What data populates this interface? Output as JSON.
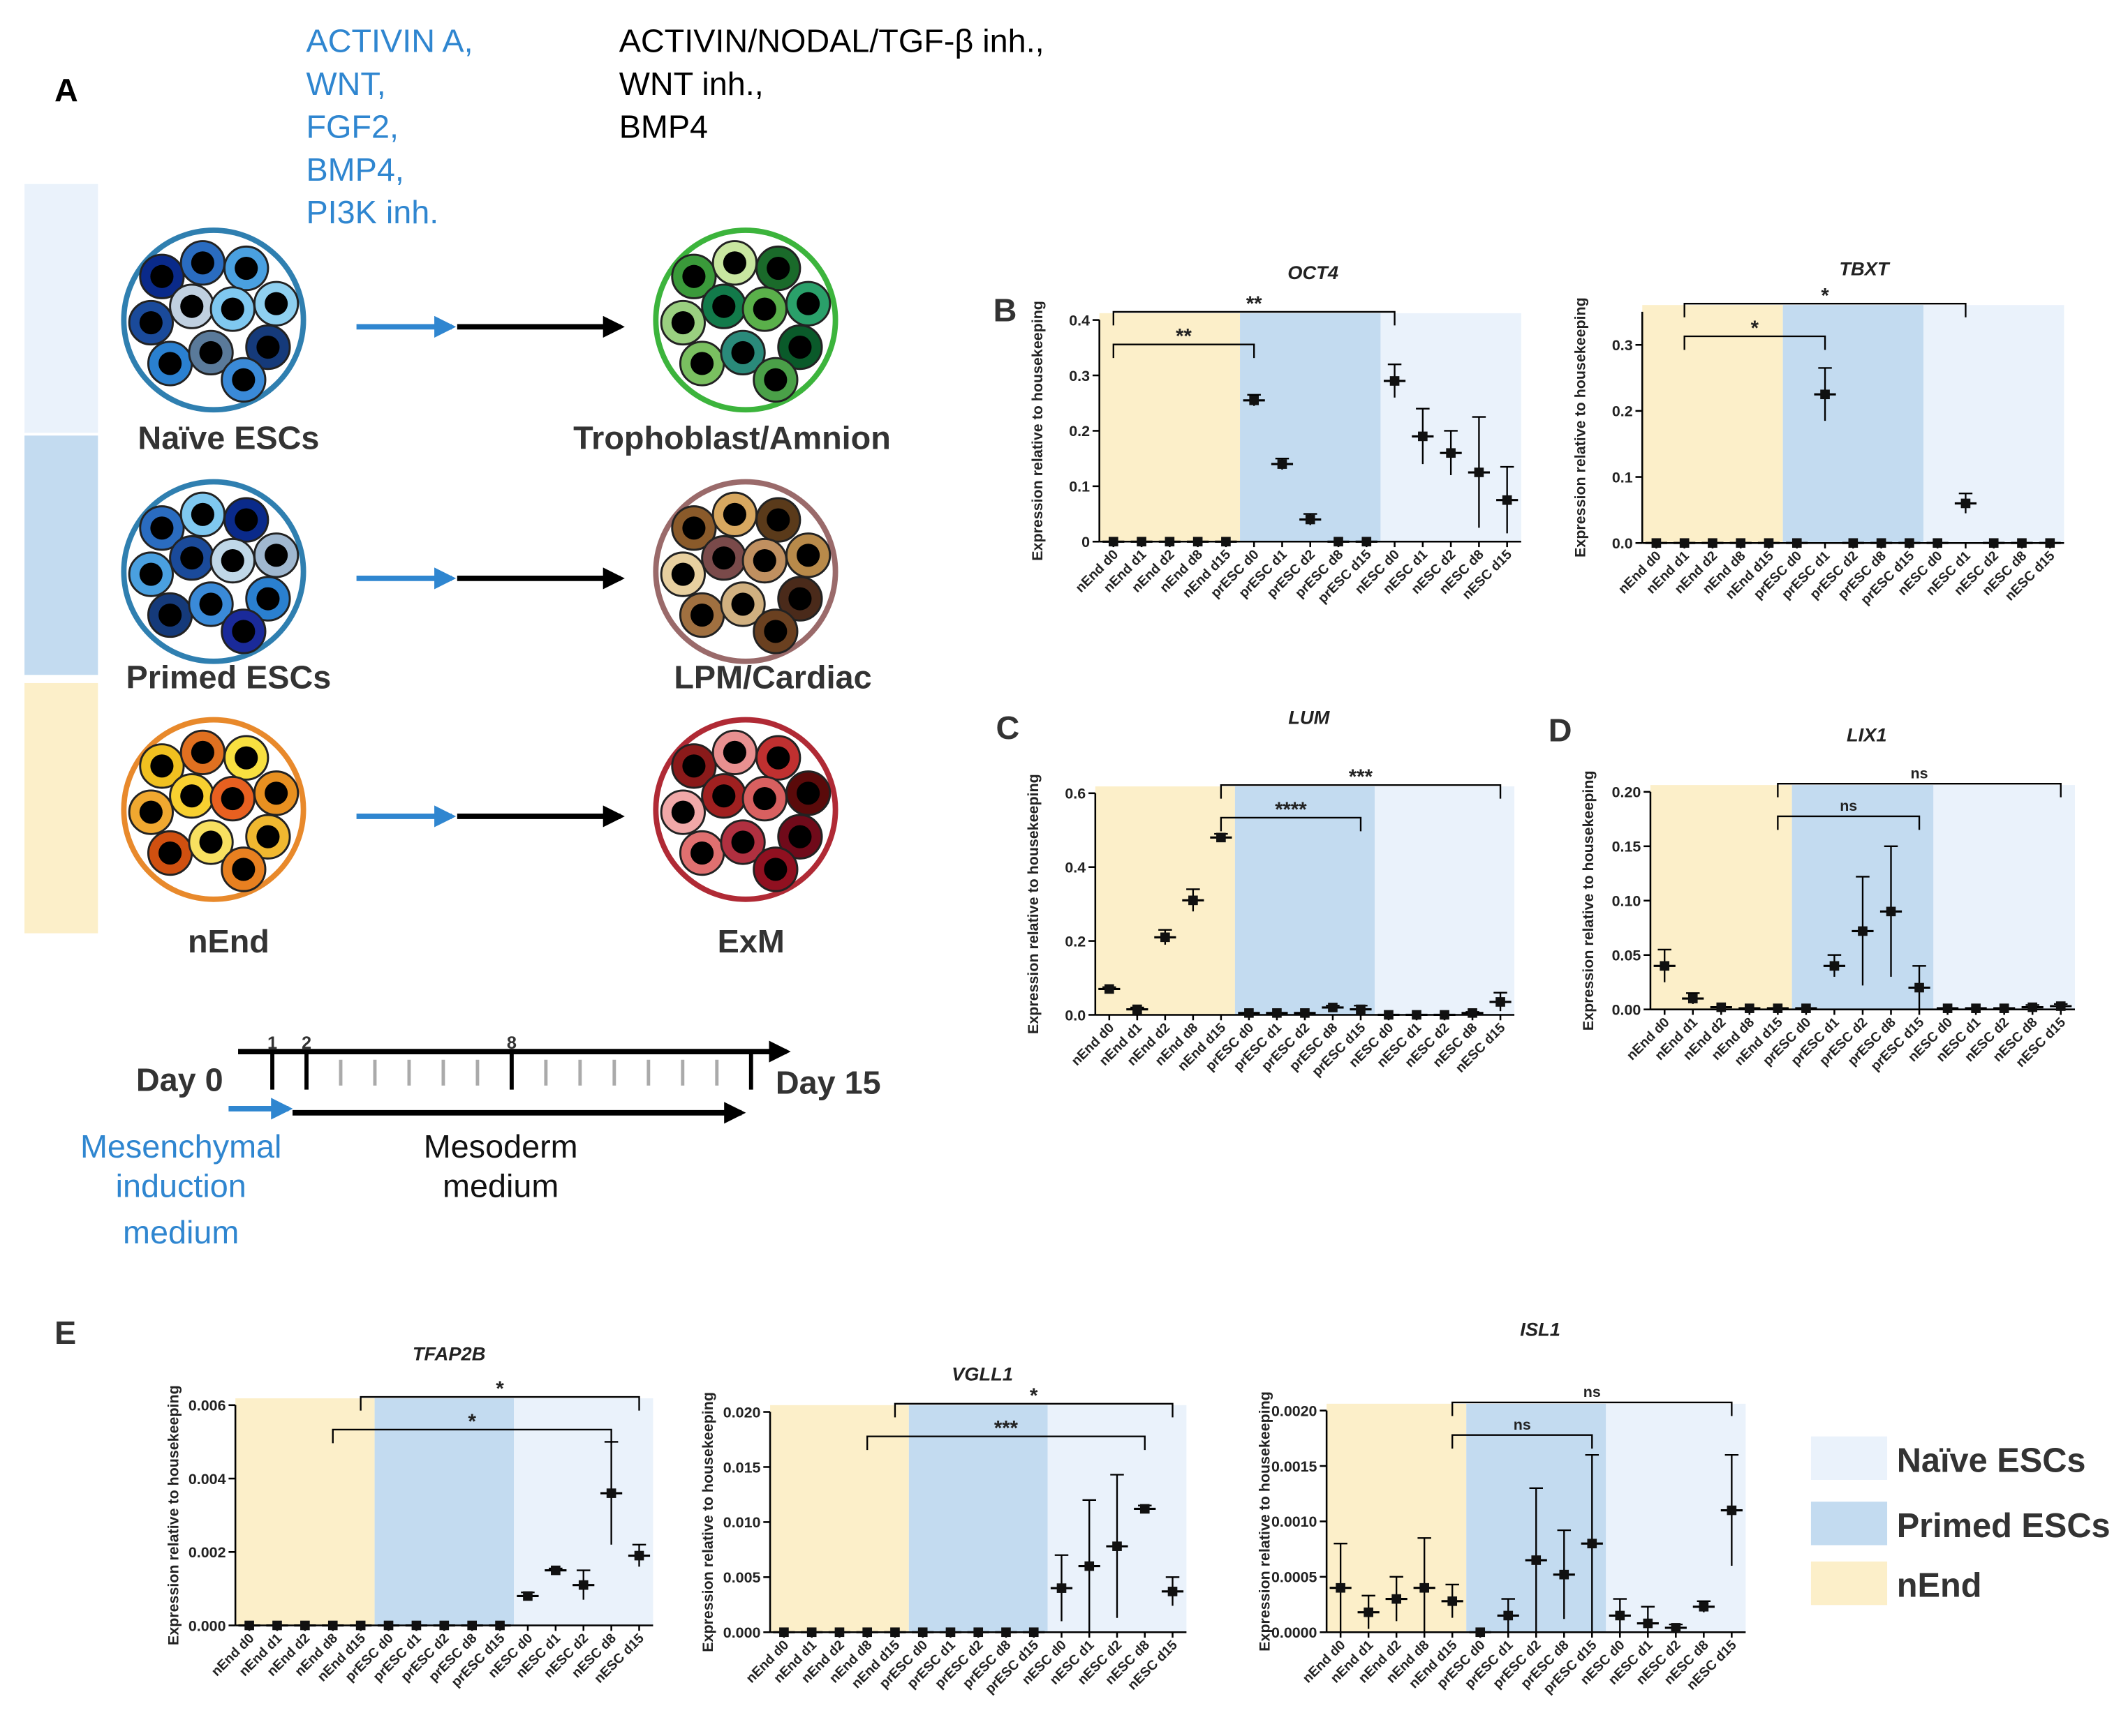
{
  "panel_a": {
    "label": "A",
    "treatment_1": [
      "ACTIVIN A,",
      "WNT,",
      "FGF2,",
      "BMP4,",
      "PI3K inh."
    ],
    "treatment_2": [
      "ACTIVIN/NODAL/TGF-β inh.,",
      "WNT inh.,",
      "BMP4"
    ],
    "rows": [
      {
        "start": "Naïve ESCs",
        "end": "Trophoblast/Amnion"
      },
      {
        "start": "Primed ESCs",
        "end": "LPM/Cardiac"
      },
      {
        "start": "nEnd",
        "end": "ExM"
      }
    ],
    "timeline": {
      "xlim": [
        0,
        15
      ],
      "ticks": [
        1,
        2,
        8
      ],
      "minor_ticks": [
        3,
        4,
        5,
        6,
        7,
        9,
        10,
        11,
        12,
        13,
        14
      ],
      "start": "Day 0",
      "end": "Day 15",
      "media": [
        [
          "Mesenchymal",
          "induction",
          "medium"
        ],
        [
          "Mesoderm",
          "medium"
        ]
      ]
    }
  },
  "panel_labels": [
    "B",
    "C",
    "D",
    "E"
  ],
  "legend": [
    {
      "name": "Naïve ESCs",
      "color": "#eaf2fb"
    },
    {
      "name": "Primed ESCs",
      "color": "#c3dbf0"
    },
    {
      "name": "nEnd",
      "color": "#fcefc9"
    }
  ],
  "chart_data": [
    {
      "type": "dot",
      "title": "OCT4",
      "ylabel": "Expression relative to housekeeping",
      "band_colors": [
        "#fcefc9",
        "#c3dbf0",
        "#eaf2fb"
      ],
      "categories": [
        "nEnd d0",
        "nEnd d1",
        "nEnd d2",
        "nEnd d8",
        "nEnd d15",
        "prESC d0",
        "prESC d1",
        "prESC d2",
        "prESC d8",
        "prESC d15",
        "nESC d0",
        "nESC d1",
        "nESC d2",
        "nESC d8",
        "nESC d15"
      ],
      "values": [
        0,
        0,
        0,
        0,
        0,
        0.255,
        0.14,
        0.04,
        0,
        0,
        0.29,
        0.19,
        0.16,
        0.125,
        0.075
      ],
      "errors": [
        0,
        0,
        0,
        0,
        0,
        0.01,
        0.01,
        0.01,
        0,
        0,
        0.03,
        0.05,
        0.04,
        0.1,
        0.06
      ],
      "ylim": [
        0,
        0.4
      ],
      "yticks": [
        0,
        0.1,
        0.2,
        0.3,
        {
          "value": 0.4,
          "label": "0.4"
        }
      ],
      "brackets": [
        {
          "from": 0,
          "to": 5,
          "label": "**"
        },
        {
          "from": 0,
          "to": 10,
          "label": "**"
        }
      ]
    },
    {
      "type": "dot",
      "title": "TBXT",
      "ylabel": "Expression relative to housekeeping",
      "band_colors": [
        "#fcefc9",
        "#c3dbf0",
        "#eaf2fb"
      ],
      "categories": [
        "nEnd d0",
        "nEnd d1",
        "nEnd d2",
        "nEnd d8",
        "nEnd d15",
        "prESC d0",
        "prESC d1",
        "prESC d2",
        "prESC d8",
        "prESC d15",
        "nESC d0",
        "nESC d1",
        "nESC d2",
        "nESC d8",
        "nESC d15"
      ],
      "values": [
        0,
        0,
        0,
        0,
        0,
        0,
        0.225,
        0,
        0,
        0,
        0,
        0.06,
        0,
        0,
        0
      ],
      "errors": [
        0,
        0,
        0,
        0,
        0,
        0,
        0.04,
        0,
        0,
        0,
        0,
        0.015,
        0,
        0,
        0
      ],
      "ylim": [
        0,
        0.35
      ],
      "yticks": [
        {
          "value": 0,
          "label": "0.0"
        },
        0.1,
        0.2,
        0.3
      ],
      "brackets": [
        {
          "from": 1,
          "to": 6,
          "label": "*"
        },
        {
          "from": 1,
          "to": 11,
          "label": "*"
        }
      ]
    },
    {
      "type": "dot",
      "title": "LUM",
      "ylabel": "Expression relative to housekeeping",
      "band_colors": [
        "#fcefc9",
        "#c3dbf0",
        "#eaf2fb"
      ],
      "categories": [
        "nEnd d0",
        "nEnd d1",
        "nEnd d2",
        "nEnd d8",
        "nEnd d15",
        "prESC d0",
        "prESC d1",
        "prESC d2",
        "prESC d8",
        "prESC d15",
        "nESC d0",
        "nESC d1",
        "nESC d2",
        "nESC d8",
        "nESC d15"
      ],
      "values": [
        0.07,
        0.015,
        0.21,
        0.31,
        0.48,
        0.005,
        0.005,
        0.005,
        0.02,
        0.015,
        0,
        0,
        0,
        0.005,
        0.035
      ],
      "errors": [
        0.005,
        0.005,
        0.02,
        0.03,
        0.01,
        0,
        0,
        0,
        0.005,
        0.01,
        0,
        0,
        0,
        0.003,
        0.025
      ],
      "ylim": [
        0,
        0.6
      ],
      "yticks": [
        {
          "value": 0,
          "label": "0.0"
        },
        0.2,
        0.4,
        0.6
      ],
      "brackets": [
        {
          "from": 4,
          "to": 9,
          "label": "****"
        },
        {
          "from": 4,
          "to": 14,
          "label": "***"
        }
      ]
    },
    {
      "type": "dot",
      "title": "LIX1",
      "ylabel": "Expression relative to housekeeping",
      "band_colors": [
        "#fcefc9",
        "#c3dbf0",
        "#eaf2fb"
      ],
      "categories": [
        "nEnd d0",
        "nEnd d1",
        "nEnd d2",
        "nEnd d8",
        "nEnd d15",
        "prESC d0",
        "prESC d1",
        "prESC d2",
        "prESC d8",
        "prESC d15",
        "nESC d0",
        "nESC d1",
        "nESC d2",
        "nESC d8",
        "nESC d15"
      ],
      "values": [
        0.04,
        0.01,
        0.002,
        0.001,
        0.001,
        0.001,
        0.04,
        0.072,
        0.09,
        0.02,
        0.001,
        0.001,
        0.001,
        0.002,
        0.003
      ],
      "errors": [
        0.015,
        0.005,
        0,
        0,
        0,
        0,
        0.01,
        0.05,
        0.06,
        0.02,
        0,
        0,
        0,
        0.002,
        0.002
      ],
      "ylim": [
        0,
        0.2
      ],
      "yticks": [
        {
          "value": 0,
          "label": "0.00"
        },
        0.05,
        {
          "value": 0.1,
          "label": "0.10"
        },
        0.15,
        {
          "value": 0.2,
          "label": "0.20"
        }
      ],
      "brackets": [
        {
          "from": 4,
          "to": 9,
          "label": "ns"
        },
        {
          "from": 4,
          "to": 14,
          "label": "ns"
        }
      ]
    },
    {
      "type": "dot",
      "title": "TFAP2B",
      "ylabel": "Expression relative to housekeeping",
      "band_colors": [
        "#fcefc9",
        "#c3dbf0",
        "#eaf2fb"
      ],
      "categories": [
        "nEnd d0",
        "nEnd d1",
        "nEnd d2",
        "nEnd d8",
        "nEnd d15",
        "prESC d0",
        "prESC d1",
        "prESC d2",
        "prESC d8",
        "prESC d15",
        "nESC d0",
        "nESC d1",
        "nESC d2",
        "nESC d8",
        "nESC d15"
      ],
      "values": [
        0,
        0,
        0,
        0,
        0,
        0,
        0,
        0,
        0,
        0,
        0.0008,
        0.0015,
        0.0011,
        0.0036,
        0.0019
      ],
      "errors": [
        0,
        0,
        0,
        0,
        0,
        0,
        0,
        0,
        0,
        0,
        0.0001,
        5e-05,
        0.0004,
        0.0014,
        0.0003
      ],
      "ylim": [
        0,
        0.006
      ],
      "yticks": [
        {
          "value": 0,
          "label": "0.000"
        },
        0.002,
        0.004,
        0.006
      ],
      "brackets": [
        {
          "from": 3,
          "to": 13,
          "label": "*"
        },
        {
          "from": 4,
          "to": 14,
          "label": "*"
        }
      ]
    },
    {
      "type": "dot",
      "title": "VGLL1",
      "ylabel": "Expression relative to housekeeping",
      "band_colors": [
        "#fcefc9",
        "#c3dbf0",
        "#eaf2fb"
      ],
      "categories": [
        "nEnd d0",
        "nEnd d1",
        "nEnd d2",
        "nEnd d8",
        "nEnd d15",
        "prESC d0",
        "prESC d1",
        "prESC d2",
        "prESC d8",
        "prESC d15",
        "nESC d0",
        "nESC d1",
        "nESC d2",
        "nESC d8",
        "nESC d15"
      ],
      "values": [
        0,
        0,
        0,
        0,
        0,
        0,
        0,
        0,
        0,
        0,
        0.004,
        0.006,
        0.0078,
        0.0112,
        0.0037
      ],
      "errors": [
        0,
        0,
        0,
        0,
        0,
        0,
        0,
        0,
        0,
        0,
        0.003,
        0.006,
        0.0065,
        0.0003,
        0.0013
      ],
      "ylim": [
        0,
        0.02
      ],
      "yticks": [
        {
          "value": 0,
          "label": "0.000"
        },
        0.005,
        {
          "value": 0.01,
          "label": "0.010"
        },
        0.015,
        {
          "value": 0.02,
          "label": "0.020"
        }
      ],
      "brackets": [
        {
          "from": 3,
          "to": 13,
          "label": "***"
        },
        {
          "from": 4,
          "to": 14,
          "label": "*"
        }
      ]
    },
    {
      "type": "dot",
      "title": "ISL1",
      "ylabel": "Expression relative to housekeeping",
      "band_colors": [
        "#fcefc9",
        "#c3dbf0",
        "#eaf2fb"
      ],
      "categories": [
        "nEnd d0",
        "nEnd d1",
        "nEnd d2",
        "nEnd d8",
        "nEnd d15",
        "prESC d0",
        "prESC d1",
        "prESC d2",
        "prESC d8",
        "prESC d15",
        "nESC d0",
        "nESC d1",
        "nESC d2",
        "nESC d8",
        "nESC d15"
      ],
      "values": [
        0.0004,
        0.00018,
        0.0003,
        0.0004,
        0.00028,
        0,
        0.00015,
        0.00065,
        0.00052,
        0.0008,
        0.00015,
        8e-05,
        4e-05,
        0.00023,
        0.0011
      ],
      "errors": [
        0.0004,
        0.00015,
        0.0002,
        0.00045,
        0.00015,
        0,
        0.00015,
        0.00065,
        0.0004,
        0.0008,
        0.00015,
        0.00015,
        3e-05,
        5e-05,
        0.0005
      ],
      "ylim": [
        0,
        0.002
      ],
      "yticks": [
        {
          "value": 0,
          "label": "0.0000"
        },
        0.0005,
        {
          "value": 0.001,
          "label": "0.0010"
        },
        0.0015,
        {
          "value": 0.002,
          "label": "0.0020"
        }
      ],
      "brackets": [
        {
          "from": 4,
          "to": 9,
          "label": "ns"
        },
        {
          "from": 4,
          "to": 14,
          "label": "ns"
        }
      ]
    }
  ]
}
